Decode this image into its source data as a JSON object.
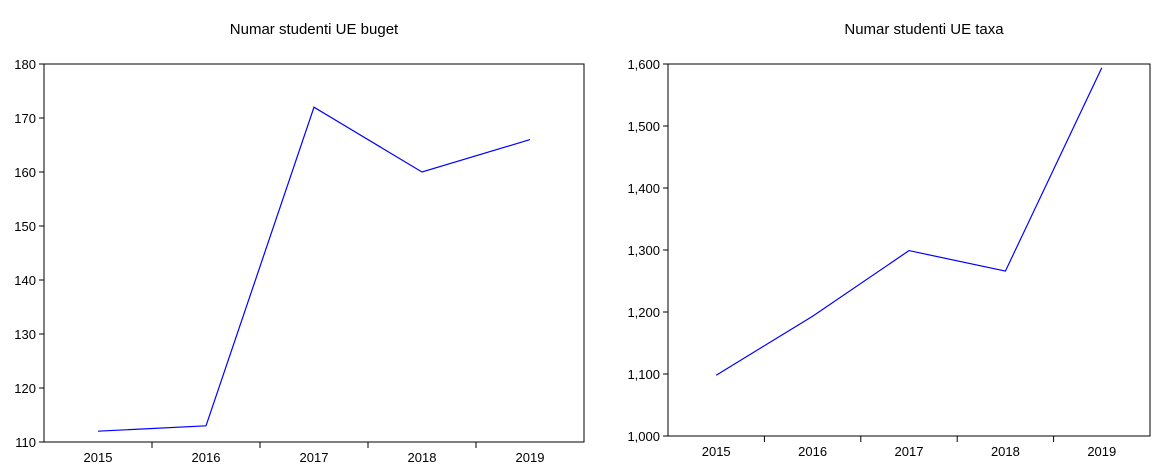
{
  "chart_data": [
    {
      "type": "line",
      "title": "Numar studenti UE buget",
      "xlabel": "",
      "ylabel": "",
      "categories": [
        "2015",
        "2016",
        "2017",
        "2018",
        "2019"
      ],
      "series": [
        {
          "values": [
            112,
            113,
            172,
            160,
            166
          ],
          "color": "#0000ff"
        }
      ],
      "ylim": [
        110,
        180
      ],
      "yticks": [
        110,
        120,
        130,
        140,
        150,
        160,
        170,
        180
      ],
      "ytick_labels": [
        "110",
        "120",
        "130",
        "140",
        "150",
        "160",
        "170",
        "180"
      ],
      "grid": false,
      "legend": "none"
    },
    {
      "type": "line",
      "title": "Numar studenti UE taxa",
      "xlabel": "",
      "ylabel": "",
      "categories": [
        "2015",
        "2016",
        "2017",
        "2018",
        "2019"
      ],
      "series": [
        {
          "values": [
            1098,
            1193,
            1299,
            1266,
            1594
          ],
          "color": "#0000ff"
        }
      ],
      "ylim": [
        1000,
        1600
      ],
      "yticks": [
        1000,
        1100,
        1200,
        1300,
        1400,
        1500,
        1600
      ],
      "ytick_labels": [
        "1,000",
        "1,100",
        "1,200",
        "1,300",
        "1,400",
        "1,500",
        "1,600"
      ],
      "grid": false,
      "legend": "none"
    }
  ]
}
